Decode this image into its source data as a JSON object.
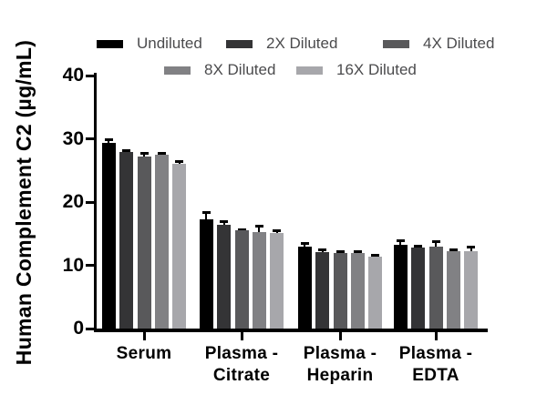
{
  "chart_data": {
    "type": "bar",
    "title": "",
    "ylabel": "Human Complement C2 (µg/mL)",
    "xlabel": "",
    "ylim": [
      0,
      40
    ],
    "yticks": [
      0,
      10,
      20,
      30,
      40
    ],
    "grid": false,
    "legend_position": "top",
    "categories": [
      "Serum",
      "Plasma - Citrate",
      "Plasma - Heparin",
      "Plasma - EDTA"
    ],
    "category_label_lines": [
      [
        "Serum"
      ],
      [
        "Plasma -",
        "Citrate"
      ],
      [
        "Plasma -",
        "Heparin"
      ],
      [
        "Plasma -",
        "EDTA"
      ]
    ],
    "series": [
      {
        "name": "Undiluted",
        "color": "#000000",
        "values": [
          29.4,
          17.2,
          12.9,
          13.2
        ],
        "errors": [
          0.5,
          1.2,
          0.6,
          0.7
        ]
      },
      {
        "name": "2X Diluted",
        "color": "#343436",
        "values": [
          27.9,
          16.4,
          12.1,
          12.8
        ],
        "errors": [
          0.35,
          0.6,
          0.4,
          0.35
        ]
      },
      {
        "name": "4X Diluted",
        "color": "#59595b",
        "values": [
          27.2,
          15.5,
          11.9,
          12.9
        ],
        "errors": [
          0.5,
          0.25,
          0.3,
          0.85
        ]
      },
      {
        "name": "8X Diluted",
        "color": "#818184",
        "values": [
          27.5,
          15.3,
          12.0,
          12.2
        ],
        "errors": [
          0.25,
          0.9,
          0.3,
          0.35
        ]
      },
      {
        "name": "16X Diluted",
        "color": "#a7a7ab",
        "values": [
          26.0,
          15.1,
          11.3,
          12.3
        ],
        "errors": [
          0.5,
          0.4,
          0.4,
          0.7
        ]
      }
    ],
    "legend_rows": [
      [
        "Undiluted",
        "2X Diluted",
        "4X Diluted"
      ],
      [
        "8X Diluted",
        "16X Diluted"
      ]
    ]
  }
}
